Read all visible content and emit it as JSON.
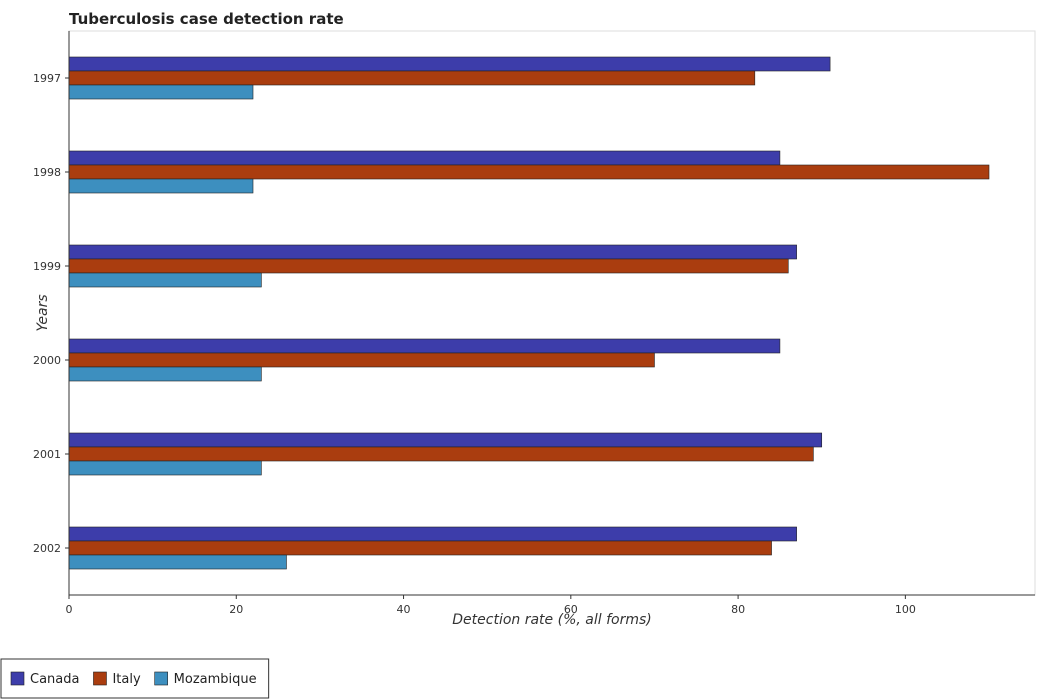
{
  "chart_data": {
    "type": "bar",
    "orientation": "horizontal",
    "title": "Tuberculosis case detection rate",
    "xlabel": "Detection rate (%, all forms)",
    "ylabel": "Years",
    "categories": [
      "1997",
      "1998",
      "1999",
      "2000",
      "2001",
      "2002"
    ],
    "series": [
      {
        "name": "Canada",
        "color": "#3d3daa",
        "values": [
          91,
          85,
          87,
          85,
          90,
          87
        ]
      },
      {
        "name": "Italy",
        "color": "#aa3d0f",
        "values": [
          82,
          110,
          86,
          70,
          89,
          84
        ]
      },
      {
        "name": "Mozambique",
        "color": "#3d8fbf",
        "values": [
          22,
          22,
          23,
          23,
          23,
          26
        ]
      }
    ],
    "xlim": [
      0,
      115.5
    ],
    "xticks": [
      0,
      20,
      40,
      60,
      80,
      100
    ],
    "grid": false,
    "legend_position": "bottom-left"
  }
}
